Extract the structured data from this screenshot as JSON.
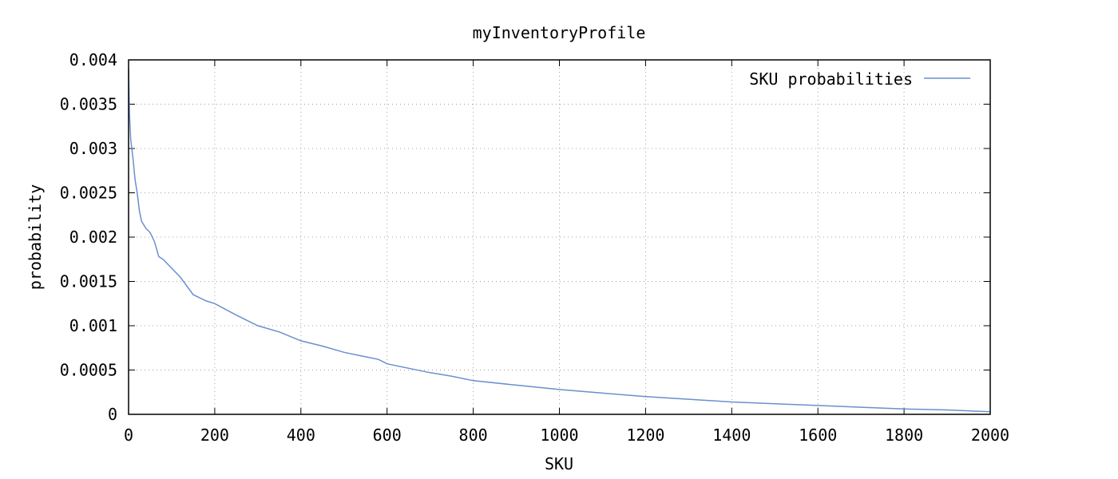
{
  "chart_data": {
    "type": "line",
    "title": "myInventoryProfile",
    "xlabel": "SKU",
    "ylabel": "probability",
    "xlim": [
      0,
      2000
    ],
    "ylim": [
      0,
      0.004
    ],
    "x_ticks": [
      0,
      200,
      400,
      600,
      800,
      1000,
      1200,
      1400,
      1600,
      1800,
      2000
    ],
    "y_ticks": [
      0,
      0.0005,
      0.001,
      0.0015,
      0.002,
      0.0025,
      0.003,
      0.0035,
      0.004
    ],
    "x_tick_labels": [
      "0",
      "200",
      "400",
      "600",
      "800",
      "1000",
      "1200",
      "1400",
      "1600",
      "1800",
      "2000"
    ],
    "y_tick_labels": [
      "0",
      "0.0005",
      "0.001",
      "0.0015",
      "0.002",
      "0.0025",
      "0.003",
      "0.0035",
      "0.004"
    ],
    "grid": true,
    "legend_position": "top-right",
    "series": [
      {
        "name": "SKU probabilities",
        "color": "#6a8fcf",
        "x": [
          0,
          2,
          5,
          10,
          15,
          20,
          25,
          30,
          40,
          50,
          60,
          70,
          80,
          100,
          120,
          150,
          180,
          200,
          250,
          300,
          350,
          400,
          450,
          500,
          550,
          580,
          600,
          650,
          700,
          750,
          800,
          900,
          1000,
          1100,
          1200,
          1300,
          1400,
          1500,
          1600,
          1700,
          1800,
          1900,
          2000
        ],
        "y": [
          0.0039,
          0.0034,
          0.0031,
          0.0029,
          0.00265,
          0.0025,
          0.0023,
          0.00218,
          0.0021,
          0.00205,
          0.00195,
          0.00178,
          0.00175,
          0.00165,
          0.00155,
          0.00135,
          0.00128,
          0.00125,
          0.00112,
          0.001,
          0.00093,
          0.00083,
          0.00077,
          0.0007,
          0.00065,
          0.00062,
          0.00057,
          0.00052,
          0.00047,
          0.00043,
          0.00038,
          0.00033,
          0.00028,
          0.00024,
          0.0002,
          0.00017,
          0.00014,
          0.00012,
          0.0001,
          8e-05,
          6e-05,
          5e-05,
          3e-05
        ]
      }
    ]
  }
}
